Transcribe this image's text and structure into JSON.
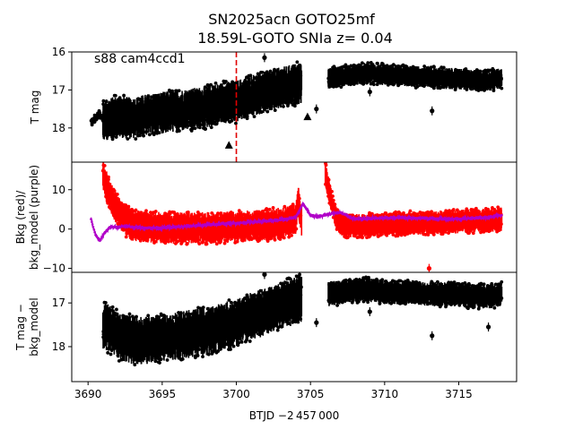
{
  "chart_data": {
    "type": "scatter",
    "title_line1": "SN2025acn  GOTO25mf",
    "title_line2": "18.59L-GOTO SNIa z= 0.04",
    "xlabel": "BTJD −2 457 000",
    "xlim": [
      3688.9,
      3718.9
    ],
    "x_ticks": [
      3690,
      3695,
      3700,
      3705,
      3710,
      3715
    ],
    "grid": false,
    "panels": [
      {
        "id": "top",
        "ylabel": "T mag",
        "ylim": [
          18.9,
          16.0
        ],
        "y_inverted": true,
        "y_ticks": [
          16,
          17,
          18
        ],
        "annotation": "s88 cam4ccd1",
        "marker_line_x": 3700.0,
        "marker_line_color": "#e00000",
        "colors": {
          "data": "#000000"
        },
        "segments": [
          {
            "x": [
              3690.2,
              3690.5,
              3690.8,
              3691.0
            ],
            "y": [
              17.85,
              17.75,
              17.6,
              17.8
            ],
            "spread": 0.1
          },
          {
            "x": [
              3691.0,
              3692.0,
              3693.0,
              3694.0,
              3695.0,
              3696.0,
              3697.0,
              3698.0,
              3699.0,
              3700.0,
              3701.0,
              3702.0,
              3703.0,
              3704.0,
              3704.4
            ],
            "y": [
              17.8,
              17.7,
              17.75,
              17.65,
              17.6,
              17.55,
              17.5,
              17.45,
              17.35,
              17.3,
              17.15,
              17.05,
              16.95,
              16.85,
              16.8
            ],
            "spread": 0.55
          },
          {
            "x": [
              3706.2,
              3707.0,
              3708.0,
              3709.0,
              3710.0,
              3711.0,
              3712.0,
              3713.0,
              3714.0,
              3715.0,
              3716.0,
              3717.0,
              3717.9
            ],
            "y": [
              16.7,
              16.65,
              16.6,
              16.55,
              16.6,
              16.6,
              16.65,
              16.65,
              16.7,
              16.7,
              16.75,
              16.75,
              16.7
            ],
            "spread": 0.28
          }
        ],
        "outliers": [
          {
            "x": 3701.9,
            "y": 16.15
          },
          {
            "x": 3705.4,
            "y": 17.5
          },
          {
            "x": 3713.2,
            "y": 17.55
          },
          {
            "x": 3709.0,
            "y": 17.05
          }
        ],
        "triangles": [
          {
            "x": 3699.5,
            "y": 18.45
          },
          {
            "x": 3704.8,
            "y": 17.7
          }
        ]
      },
      {
        "id": "middle",
        "ylabel": "Bkg (red)/\nbkg_model (purple)",
        "ylim": [
          -11.0,
          17.0
        ],
        "y_inverted": false,
        "y_ticks": [
          -10,
          0,
          10
        ],
        "colors": {
          "data": "#ff0000",
          "model": "#b000c8"
        },
        "segments": [
          {
            "x": [
              3691.0,
              3691.4,
              3691.8,
              3692.2,
              3692.6,
              3693.0,
              3694.0,
              3695.0,
              3696.0,
              3697.0,
              3698.0,
              3699.0,
              3700.0,
              3701.0,
              3702.0,
              3703.0,
              3704.0,
              3704.2,
              3704.4
            ],
            "y": [
              14.0,
              9.0,
              6.0,
              3.5,
              2.0,
              1.0,
              0.5,
              0.3,
              0.2,
              0.3,
              0.3,
              0.4,
              0.5,
              0.8,
              1.0,
              1.5,
              2.5,
              7.0,
              2.0
            ],
            "spread": 4.0
          },
          {
            "x": [
              3706.0,
              3706.3,
              3706.6,
              3707.0,
              3707.5,
              3708.0,
              3709.0,
              3710.0,
              3711.0,
              3712.0,
              3713.0,
              3714.0,
              3715.0,
              3716.0,
              3717.0,
              3717.9
            ],
            "y": [
              14.0,
              9.0,
              4.0,
              1.5,
              0.8,
              0.8,
              1.0,
              1.2,
              1.3,
              1.5,
              1.6,
              1.8,
              1.9,
              2.1,
              2.2,
              2.5
            ],
            "spread": 3.0
          }
        ],
        "outliers": [
          {
            "x": 3713.0,
            "y": -10.0
          }
        ],
        "model_line": {
          "x": [
            3690.2,
            3690.5,
            3690.8,
            3691.1,
            3691.5,
            3692.0,
            3692.5,
            3693.0,
            3694.0,
            3695.0,
            3696.0,
            3697.0,
            3698.0,
            3699.0,
            3700.0,
            3701.0,
            3702.0,
            3703.0,
            3704.0,
            3704.5,
            3705.0,
            3705.5,
            3706.0,
            3706.5,
            3707.0,
            3708.0,
            3709.0,
            3710.0,
            3711.0,
            3712.0,
            3713.0,
            3714.0,
            3715.0,
            3716.0,
            3717.0,
            3717.9
          ],
          "y": [
            2.5,
            -1.5,
            -3.0,
            -1.0,
            0.5,
            0.5,
            0.8,
            0.5,
            0.3,
            0.3,
            0.5,
            0.8,
            1.0,
            1.3,
            1.5,
            1.8,
            2.0,
            2.3,
            3.0,
            6.5,
            3.5,
            3.2,
            3.5,
            4.0,
            4.2,
            2.5,
            2.7,
            2.8,
            2.9,
            2.8,
            2.7,
            2.6,
            2.6,
            2.8,
            3.0,
            3.5
          ]
        }
      },
      {
        "id": "bottom",
        "ylabel": "T mag −\nbkg_model",
        "ylim": [
          18.8,
          16.3
        ],
        "y_inverted": true,
        "y_ticks": [
          17,
          18
        ],
        "colors": {
          "data": "#000000"
        },
        "segments": [
          {
            "x": [
              3691.0,
              3691.5,
              3692.0,
              3693.0,
              3694.0,
              3695.0,
              3696.0,
              3697.0,
              3698.0,
              3699.0,
              3700.0,
              3701.0,
              3702.0,
              3703.0,
              3704.0,
              3704.4
            ],
            "y": [
              17.5,
              17.6,
              17.75,
              17.85,
              17.85,
              17.8,
              17.75,
              17.7,
              17.65,
              17.55,
              17.45,
              17.3,
              17.2,
              17.05,
              16.95,
              16.9
            ],
            "spread": 0.55
          },
          {
            "x": [
              3706.2,
              3707.0,
              3708.0,
              3709.0,
              3710.0,
              3711.0,
              3712.0,
              3713.0,
              3714.0,
              3715.0,
              3716.0,
              3717.0,
              3717.9
            ],
            "y": [
              16.8,
              16.75,
              16.7,
              16.7,
              16.75,
              16.75,
              16.75,
              16.8,
              16.8,
              16.8,
              16.85,
              16.85,
              16.8
            ],
            "spread": 0.28
          }
        ],
        "outliers": [
          {
            "x": 3701.9,
            "y": 16.35
          },
          {
            "x": 3705.4,
            "y": 17.45
          },
          {
            "x": 3713.2,
            "y": 17.75
          },
          {
            "x": 3717.0,
            "y": 17.55
          },
          {
            "x": 3709.0,
            "y": 17.2
          }
        ]
      }
    ]
  }
}
